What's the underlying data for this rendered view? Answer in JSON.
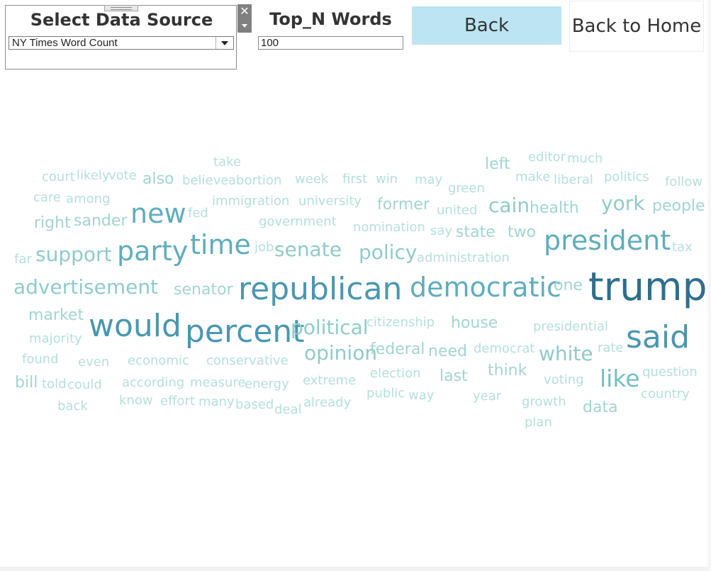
{
  "source_selector": {
    "title": "Select Data Source",
    "selected": "NY Times Word Count"
  },
  "top_n": {
    "title": "Top_N Words",
    "value": "100"
  },
  "buttons": {
    "back": "Back",
    "home": "Back to Home"
  },
  "colors": {
    "back_button_bg": "#bce4f2",
    "word_scale": [
      "#b5e0dc",
      "#a2d5d2",
      "#8fcbca",
      "#75bfc2",
      "#5fadbc",
      "#4a97b1",
      "#2e6e8e"
    ]
  },
  "word_cloud": [
    {
      "text": "take",
      "weight": 1
    },
    {
      "text": "editor",
      "weight": 1
    },
    {
      "text": "much",
      "weight": 1
    },
    {
      "text": "left",
      "weight": 2
    },
    {
      "text": "court",
      "weight": 1
    },
    {
      "text": "likely",
      "weight": 1
    },
    {
      "text": "vote",
      "weight": 1
    },
    {
      "text": "also",
      "weight": 2
    },
    {
      "text": "believe",
      "weight": 1
    },
    {
      "text": "abortion",
      "weight": 1
    },
    {
      "text": "week",
      "weight": 1
    },
    {
      "text": "first",
      "weight": 1
    },
    {
      "text": "win",
      "weight": 1
    },
    {
      "text": "may",
      "weight": 1
    },
    {
      "text": "green",
      "weight": 1
    },
    {
      "text": "make",
      "weight": 1
    },
    {
      "text": "liberal",
      "weight": 1
    },
    {
      "text": "politics",
      "weight": 1
    },
    {
      "text": "follow",
      "weight": 1
    },
    {
      "text": "care",
      "weight": 1
    },
    {
      "text": "among",
      "weight": 1
    },
    {
      "text": "immigration",
      "weight": 1
    },
    {
      "text": "university",
      "weight": 1
    },
    {
      "text": "former",
      "weight": 2
    },
    {
      "text": "united",
      "weight": 1
    },
    {
      "text": "cain",
      "weight": 3
    },
    {
      "text": "health",
      "weight": 2
    },
    {
      "text": "york",
      "weight": 3
    },
    {
      "text": "people",
      "weight": 2
    },
    {
      "text": "new",
      "weight": 5
    },
    {
      "text": "fed",
      "weight": 1
    },
    {
      "text": "right",
      "weight": 2
    },
    {
      "text": "sander",
      "weight": 2
    },
    {
      "text": "government",
      "weight": 1
    },
    {
      "text": "nomination",
      "weight": 1
    },
    {
      "text": "say",
      "weight": 1
    },
    {
      "text": "state",
      "weight": 2
    },
    {
      "text": "two",
      "weight": 2
    },
    {
      "text": "time",
      "weight": 5
    },
    {
      "text": "president",
      "weight": 5
    },
    {
      "text": "support",
      "weight": 3
    },
    {
      "text": "party",
      "weight": 5
    },
    {
      "text": "job",
      "weight": 1
    },
    {
      "text": "senate",
      "weight": 3
    },
    {
      "text": "policy",
      "weight": 3
    },
    {
      "text": "far",
      "weight": 1
    },
    {
      "text": "administration",
      "weight": 1
    },
    {
      "text": "tax",
      "weight": 1
    },
    {
      "text": "advertisement",
      "weight": 3
    },
    {
      "text": "senator",
      "weight": 2
    },
    {
      "text": "republican",
      "weight": 6
    },
    {
      "text": "democratic",
      "weight": 5
    },
    {
      "text": "one",
      "weight": 2
    },
    {
      "text": "trump",
      "weight": 7
    },
    {
      "text": "market",
      "weight": 2
    },
    {
      "text": "would",
      "weight": 6
    },
    {
      "text": "percent",
      "weight": 6
    },
    {
      "text": "political",
      "weight": 3
    },
    {
      "text": "citizenship",
      "weight": 1
    },
    {
      "text": "house",
      "weight": 2
    },
    {
      "text": "presidential",
      "weight": 1
    },
    {
      "text": "said",
      "weight": 6
    },
    {
      "text": "majority",
      "weight": 1
    },
    {
      "text": "opinion",
      "weight": 3
    },
    {
      "text": "federal",
      "weight": 2
    },
    {
      "text": "need",
      "weight": 2
    },
    {
      "text": "democrat",
      "weight": 1
    },
    {
      "text": "white",
      "weight": 3
    },
    {
      "text": "rate",
      "weight": 1
    },
    {
      "text": "found",
      "weight": 1
    },
    {
      "text": "even",
      "weight": 1
    },
    {
      "text": "economic",
      "weight": 1
    },
    {
      "text": "conservative",
      "weight": 1
    },
    {
      "text": "like",
      "weight": 4
    },
    {
      "text": "question",
      "weight": 1
    },
    {
      "text": "bill",
      "weight": 2
    },
    {
      "text": "told",
      "weight": 1
    },
    {
      "text": "could",
      "weight": 1
    },
    {
      "text": "according",
      "weight": 1
    },
    {
      "text": "measure",
      "weight": 1
    },
    {
      "text": "energy",
      "weight": 1
    },
    {
      "text": "extreme",
      "weight": 1
    },
    {
      "text": "election",
      "weight": 1
    },
    {
      "text": "last",
      "weight": 2
    },
    {
      "text": "think",
      "weight": 2
    },
    {
      "text": "voting",
      "weight": 1
    },
    {
      "text": "public",
      "weight": 1
    },
    {
      "text": "way",
      "weight": 1
    },
    {
      "text": "year",
      "weight": 1
    },
    {
      "text": "country",
      "weight": 1
    },
    {
      "text": "back",
      "weight": 1
    },
    {
      "text": "know",
      "weight": 1
    },
    {
      "text": "effort",
      "weight": 1
    },
    {
      "text": "many",
      "weight": 1
    },
    {
      "text": "based",
      "weight": 1
    },
    {
      "text": "deal",
      "weight": 1
    },
    {
      "text": "already",
      "weight": 1
    },
    {
      "text": "growth",
      "weight": 1
    },
    {
      "text": "data",
      "weight": 2
    },
    {
      "text": "plan",
      "weight": 1
    }
  ]
}
